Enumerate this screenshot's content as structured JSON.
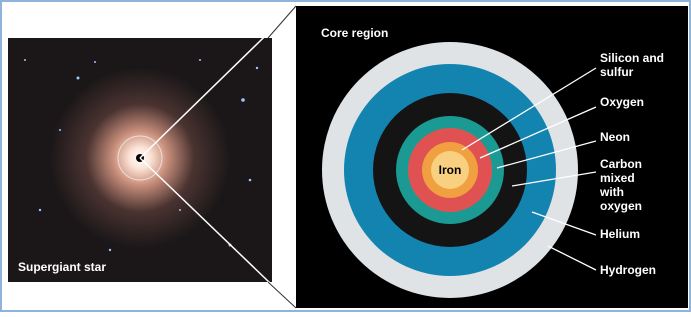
{
  "left_panel": {
    "label": "Supergiant star"
  },
  "right_panel": {
    "title": "Core region",
    "center_label": "Iron",
    "layers": [
      {
        "lines": [
          "Silicon and",
          "sulfur"
        ]
      },
      {
        "lines": [
          "Oxygen"
        ]
      },
      {
        "lines": [
          "Neon"
        ]
      },
      {
        "lines": [
          "Carbon",
          "mixed",
          "with",
          "oxygen"
        ]
      },
      {
        "lines": [
          "Helium"
        ]
      },
      {
        "lines": [
          "Hydrogen"
        ]
      }
    ]
  }
}
